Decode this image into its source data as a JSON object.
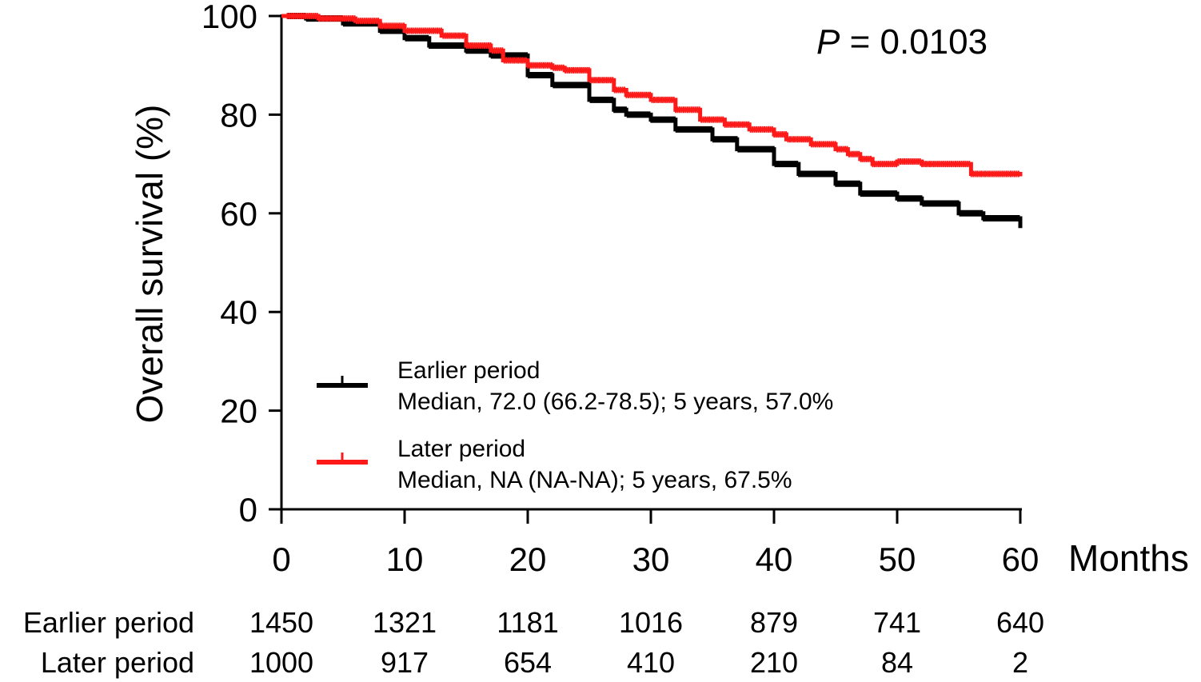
{
  "chart_data": {
    "type": "line",
    "subtype": "kaplan-meier",
    "ylabel": "Overall survival (%)",
    "xlabel": "Months",
    "xlim": [
      0,
      60
    ],
    "ylim": [
      0,
      100
    ],
    "x_ticks": [
      0,
      10,
      20,
      30,
      40,
      50,
      60
    ],
    "y_ticks": [
      0,
      20,
      40,
      60,
      80,
      100
    ],
    "annotation": {
      "prefix": "P",
      "text": " = 0.0103"
    },
    "series": [
      {
        "name": "Earlier period",
        "detail": "Median, 72.0 (66.2-78.5); 5 years, 57.0%",
        "color": "#000000",
        "x": [
          0,
          2,
          5,
          8,
          10,
          12,
          15,
          17,
          20,
          22,
          25,
          27,
          28,
          30,
          32,
          35,
          37,
          40,
          42,
          45,
          47,
          50,
          52,
          55,
          57,
          60
        ],
        "y": [
          100,
          99.5,
          98.5,
          97,
          95.5,
          94,
          93,
          92,
          88,
          86,
          83,
          81,
          80,
          79,
          77,
          75,
          73,
          70,
          68,
          66,
          64,
          63,
          62,
          60,
          59,
          57
        ]
      },
      {
        "name": "Later period",
        "detail": "Median, NA (NA-NA); 5 years, 67.5%",
        "color": "#ff1a1a",
        "x": [
          0,
          3,
          6,
          8,
          10,
          13,
          15,
          17,
          18,
          20,
          22,
          23,
          25,
          27,
          28,
          30,
          32,
          34,
          36,
          38,
          40,
          41,
          43,
          45,
          46,
          47,
          48,
          50,
          52,
          54,
          55,
          56,
          58,
          60
        ],
        "y": [
          100,
          99.5,
          99,
          98,
          97,
          96,
          94,
          93,
          91,
          90,
          89.5,
          89,
          87,
          85,
          84,
          83,
          81,
          79,
          78,
          77,
          76,
          75,
          74,
          73,
          72,
          71,
          70,
          70.5,
          70,
          70,
          70,
          68,
          68,
          67.5
        ]
      }
    ],
    "risk_table": {
      "rows": [
        {
          "label": "Earlier period",
          "values": [
            "1450",
            "1321",
            "1181",
            "1016",
            "879",
            "741",
            "640"
          ]
        },
        {
          "label": "Later period",
          "values": [
            "1000",
            "917",
            "654",
            "410",
            "210",
            "84",
            "2"
          ]
        }
      ]
    }
  }
}
